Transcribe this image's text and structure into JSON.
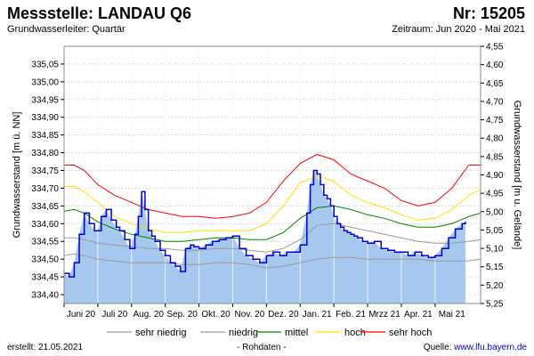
{
  "header": {
    "title": "Messstelle: LANDAU Q6",
    "number": "Nr: 15205",
    "aquifer": "Grundwasserleiter: Quartär",
    "period": "Zeitraum: Jun 2020 - Mai 2021"
  },
  "footer": {
    "created": "erstellt:  21.05.2021",
    "raw": "- Rohdaten -",
    "source_label": "Quelle: ",
    "source_url": "www.lfu.bayern.de"
  },
  "colors": {
    "sehr_niedrig": "#999999",
    "niedrig": "#999999",
    "mittel": "#008000",
    "hoch": "#ffdd00",
    "sehr_hoch": "#ff0000",
    "fill": "#a6c8ee",
    "measured": "#0000cc"
  },
  "chart_data": {
    "type": "line",
    "title": "Messstelle: LANDAU Q6",
    "ylabel_left": "Grundwasserstand [m ü. NN]",
    "ylabel_right": "Grundwasserstand [m u. Gelände]",
    "ylim_left": [
      334.375,
      335.1
    ],
    "ylim_right": [
      5.25,
      4.55
    ],
    "yticks_left": [
      "335,05",
      "335,00",
      "334,95",
      "334,90",
      "334,85",
      "334,80",
      "334,75",
      "334,70",
      "334,65",
      "334,60",
      "334,55",
      "334,50",
      "334,45",
      "334,40"
    ],
    "yticks_left_values": [
      335.05,
      335.0,
      334.95,
      334.9,
      334.85,
      334.8,
      334.75,
      334.7,
      334.65,
      334.6,
      334.55,
      334.5,
      334.45,
      334.4
    ],
    "yticks_right": [
      "4,55",
      "4,60",
      "4,65",
      "4,70",
      "4,75",
      "4,80",
      "4,85",
      "4,90",
      "4,95",
      "5,00",
      "5,05",
      "5,10",
      "5,15",
      "5,20",
      "5,25"
    ],
    "yticks_right_values": [
      4.55,
      4.6,
      4.65,
      4.7,
      4.75,
      4.8,
      4.85,
      4.9,
      4.95,
      5.0,
      5.05,
      5.1,
      5.15,
      5.2,
      5.25
    ],
    "xlim": [
      0,
      12.35
    ],
    "months": [
      "Juni 20",
      "Juli 20",
      "Aug. 20",
      "Sep. 20",
      "Okt. 20",
      "Nov. 20",
      "Dez. 20",
      "Jan. 21",
      "Feb. 21",
      "Mrzz 21",
      "Apr. 21",
      "Mai 21"
    ],
    "grid": true,
    "legend_position": "bottom",
    "legend": [
      {
        "key": "sehr_niedrig",
        "label": "sehr niedrig"
      },
      {
        "key": "niedrig",
        "label": "niedrig"
      },
      {
        "key": "mittel",
        "label": "mittel"
      },
      {
        "key": "hoch",
        "label": "hoch"
      },
      {
        "key": "sehr_hoch",
        "label": "sehr hoch"
      }
    ],
    "series": [
      {
        "key": "sehr_hoch",
        "x": [
          0,
          0.3,
          0.6,
          1,
          1.5,
          2,
          2.5,
          3,
          3.5,
          4,
          4.5,
          5,
          5.5,
          6,
          6.5,
          7,
          7.5,
          8,
          8.5,
          9,
          9.5,
          10,
          10.5,
          11,
          11.5,
          12,
          12.35
        ],
        "values": [
          334.765,
          334.765,
          334.75,
          334.71,
          334.68,
          334.66,
          334.64,
          334.63,
          334.62,
          334.62,
          334.615,
          334.62,
          334.63,
          334.66,
          334.72,
          334.77,
          334.795,
          334.78,
          334.74,
          334.72,
          334.7,
          334.665,
          334.65,
          334.66,
          334.7,
          334.765,
          334.765
        ]
      },
      {
        "key": "hoch",
        "x": [
          0,
          0.3,
          0.6,
          1,
          1.5,
          2,
          2.5,
          3,
          3.5,
          4,
          4.5,
          5,
          5.5,
          6,
          6.5,
          7,
          7.5,
          8,
          8.5,
          9,
          9.5,
          10,
          10.5,
          11,
          11.5,
          12,
          12.35
        ],
        "values": [
          334.705,
          334.705,
          334.69,
          334.66,
          334.62,
          334.6,
          334.585,
          334.575,
          334.575,
          334.58,
          334.58,
          334.58,
          334.58,
          334.6,
          334.65,
          334.715,
          334.735,
          334.72,
          334.68,
          334.66,
          334.645,
          334.625,
          334.61,
          334.615,
          334.64,
          334.68,
          334.695
        ]
      },
      {
        "key": "mittel",
        "x": [
          0,
          0.3,
          0.6,
          1,
          1.5,
          2,
          2.5,
          3,
          3.5,
          4,
          4.5,
          5,
          5.5,
          6,
          6.5,
          7,
          7.5,
          8,
          8.5,
          9,
          9.5,
          10,
          10.5,
          11,
          11.5,
          12,
          12.35
        ],
        "values": [
          334.635,
          334.64,
          334.63,
          334.605,
          334.585,
          334.57,
          334.56,
          334.55,
          334.55,
          334.555,
          334.56,
          334.56,
          334.555,
          334.555,
          334.575,
          334.615,
          334.645,
          334.65,
          334.64,
          334.625,
          334.615,
          334.6,
          334.59,
          334.59,
          334.6,
          334.62,
          334.63
        ]
      },
      {
        "key": "niedrig",
        "x": [
          0,
          0.3,
          0.6,
          1,
          1.5,
          2,
          2.5,
          3,
          3.5,
          4,
          4.5,
          5,
          5.5,
          6,
          6.5,
          7,
          7.5,
          8,
          8.5,
          9,
          9.5,
          10,
          10.5,
          11,
          11.5,
          12,
          12.35
        ],
        "values": [
          334.56,
          334.56,
          334.555,
          334.545,
          334.54,
          334.535,
          334.53,
          334.53,
          334.525,
          334.525,
          334.53,
          334.53,
          334.525,
          334.52,
          334.53,
          334.555,
          334.595,
          334.6,
          334.59,
          334.58,
          334.57,
          334.56,
          334.55,
          334.545,
          334.545,
          334.55,
          334.555
        ]
      },
      {
        "key": "sehr_niedrig",
        "x": [
          0,
          0.3,
          0.6,
          1,
          1.5,
          2,
          2.5,
          3,
          3.5,
          4,
          4.5,
          5,
          5.5,
          6,
          6.5,
          7,
          7.5,
          8,
          8.5,
          9,
          9.5,
          10,
          10.5,
          11,
          11.5,
          12,
          12.35
        ],
        "values": [
          334.51,
          334.515,
          334.51,
          334.5,
          334.495,
          334.49,
          334.49,
          334.49,
          334.485,
          334.485,
          334.49,
          334.49,
          334.485,
          334.475,
          334.48,
          334.49,
          334.5,
          334.505,
          334.505,
          334.5,
          334.5,
          334.5,
          334.5,
          334.495,
          334.495,
          334.495,
          334.5
        ]
      }
    ],
    "measured": {
      "name": "Rohdaten",
      "x": [
        0,
        0.15,
        0.3,
        0.45,
        0.6,
        0.75,
        0.9,
        1.0,
        1.1,
        1.25,
        1.4,
        1.55,
        1.65,
        1.8,
        1.95,
        2.1,
        2.2,
        2.3,
        2.4,
        2.5,
        2.6,
        2.7,
        2.85,
        3.0,
        3.15,
        3.3,
        3.45,
        3.6,
        3.75,
        3.85,
        4.0,
        4.2,
        4.4,
        4.6,
        4.8,
        5.0,
        5.2,
        5.4,
        5.6,
        5.8,
        6.0,
        6.2,
        6.4,
        6.6,
        6.8,
        7.0,
        7.2,
        7.3,
        7.4,
        7.5,
        7.6,
        7.7,
        7.8,
        7.9,
        8.0,
        8.1,
        8.2,
        8.3,
        8.4,
        8.5,
        8.6,
        8.7,
        8.85,
        9.0,
        9.2,
        9.4,
        9.6,
        9.8,
        10.0,
        10.2,
        10.4,
        10.6,
        10.8,
        11.0,
        11.2,
        11.4,
        11.6,
        11.8,
        11.9
      ],
      "values": [
        334.46,
        334.45,
        334.49,
        334.57,
        334.63,
        334.6,
        334.58,
        334.58,
        334.62,
        334.64,
        334.61,
        334.59,
        334.58,
        334.555,
        334.53,
        334.57,
        334.62,
        334.69,
        334.64,
        334.58,
        334.565,
        334.55,
        334.525,
        334.51,
        334.49,
        334.48,
        334.465,
        334.53,
        334.54,
        334.535,
        334.53,
        334.54,
        334.55,
        334.555,
        334.56,
        334.565,
        334.53,
        334.51,
        334.5,
        334.49,
        334.51,
        334.52,
        334.51,
        334.52,
        334.52,
        334.54,
        334.63,
        334.71,
        334.75,
        334.74,
        334.71,
        334.68,
        334.67,
        334.65,
        334.62,
        334.6,
        334.59,
        334.58,
        334.575,
        334.57,
        334.565,
        334.56,
        334.55,
        334.545,
        334.55,
        334.53,
        334.525,
        334.52,
        334.52,
        334.51,
        334.52,
        334.51,
        334.505,
        334.51,
        334.53,
        334.56,
        334.585,
        334.6,
        334.605
      ]
    }
  }
}
